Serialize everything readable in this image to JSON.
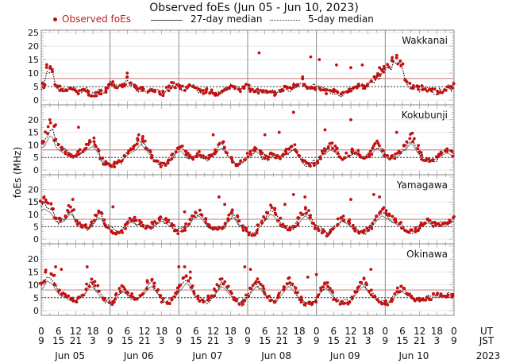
{
  "chart_data": {
    "type": "scatter",
    "title": "Observed foEs (Jun 05 - Jun 10, 2023)",
    "legend": [
      {
        "name": "Observed foEs",
        "marker": "dot",
        "color": "#b01010"
      },
      {
        "name": "27-day median",
        "style": "solid"
      },
      {
        "name": "5-day median",
        "style": "dotted"
      }
    ],
    "legend_placement": "top",
    "ylabel": "foEs (MHz)",
    "xlabel_rows": [
      "UT",
      "JST"
    ],
    "year_label": "2023",
    "x_ticks_ut": [
      "0",
      "6",
      "12",
      "18",
      "0",
      "6",
      "12",
      "18",
      "0",
      "6",
      "12",
      "18",
      "0",
      "6",
      "12",
      "18",
      "0",
      "6",
      "12",
      "18",
      "0",
      "6",
      "12",
      "18",
      "0"
    ],
    "x_ticks_jst": [
      "9",
      "15",
      "21",
      "3",
      "9",
      "15",
      "21",
      "3",
      "9",
      "15",
      "21",
      "3",
      "9",
      "15",
      "21",
      "3",
      "9",
      "15",
      "21",
      "3",
      "9",
      "15",
      "21",
      "3",
      "9"
    ],
    "day_labels": [
      "Jun 05",
      "Jun 06",
      "Jun 07",
      "Jun 08",
      "Jun 09",
      "Jun 10"
    ],
    "x_range_hours": [
      0,
      144
    ],
    "grid": true,
    "panels": [
      {
        "station": "Wakkanai",
        "ylim": [
          0,
          25
        ],
        "y_ticks": [
          "0",
          "5",
          "10",
          "15",
          "20",
          "25"
        ],
        "median27": 8,
        "median5_level": 5,
        "observed_profile": [
          5.5,
          5,
          12.5,
          12,
          11,
          5,
          4.5,
          3.5,
          3.5,
          3.5,
          4,
          4.5,
          3.5,
          3,
          3,
          3.5,
          4,
          2.5,
          2,
          2,
          2.5,
          3,
          3.5,
          5,
          6,
          6,
          5.5,
          5,
          5,
          5.5,
          8.5,
          6,
          5,
          4.5,
          4,
          4,
          3.5,
          3,
          3,
          3.5,
          3,
          2.5,
          2.5,
          3,
          4,
          5,
          6,
          5,
          5,
          5,
          4,
          4.5,
          5,
          4.5,
          4,
          3.5,
          3,
          3,
          3.5,
          3,
          3,
          2.5,
          2.5,
          3,
          3.5,
          4,
          5,
          5,
          5,
          4.5,
          4,
          4.5,
          5,
          4,
          3.5,
          3.5,
          3,
          3,
          3,
          2.5,
          2.5,
          2.5,
          3,
          3,
          4,
          5,
          4.5,
          4.5,
          5,
          5.5,
          6,
          8,
          6,
          5,
          5,
          5,
          4,
          4,
          3.5,
          3,
          3,
          3,
          3.5,
          3,
          2.5,
          2.5,
          2.5,
          3,
          3.5,
          4,
          5,
          6,
          5,
          5,
          6,
          7,
          8,
          9,
          10,
          11,
          12,
          13,
          14,
          15,
          16,
          14,
          13,
          7,
          6,
          5,
          5,
          5,
          4.5,
          4.5,
          4,
          4,
          3.5,
          3.5,
          3,
          3,
          3.5,
          4,
          4.5,
          5,
          6
        ],
        "outliers": [
          [
            30,
            10
          ],
          [
            76,
            17.5
          ],
          [
            94,
            16
          ],
          [
            97,
            15
          ],
          [
            103,
            13
          ],
          [
            108,
            12
          ],
          [
            112,
            13
          ],
          [
            118,
            12
          ]
        ]
      },
      {
        "station": "Kokubunji",
        "ylim": [
          0,
          25
        ],
        "y_ticks": [
          "0",
          "5",
          "10",
          "15",
          "20"
        ],
        "median27": 8,
        "median5_level": 5,
        "observed_profile": [
          11,
          12,
          15,
          18,
          17,
          12,
          10,
          9,
          8,
          7,
          6,
          5,
          6,
          7,
          8,
          9,
          10,
          11,
          12,
          10,
          8,
          5,
          3,
          2,
          2,
          2,
          2.5,
          3,
          4,
          5,
          7,
          8,
          9,
          10,
          12,
          13,
          11,
          9,
          7,
          5,
          4,
          3,
          2,
          2,
          3,
          4,
          6,
          8,
          9,
          9,
          7,
          6,
          5,
          5,
          6,
          7,
          6,
          5,
          5,
          6,
          7,
          8,
          10,
          11,
          9,
          7,
          5,
          3,
          2,
          2,
          3,
          4,
          6,
          7,
          8,
          9,
          8,
          6,
          5,
          5,
          6,
          6,
          5,
          5,
          6,
          7,
          8,
          9,
          10,
          8,
          6,
          4,
          3,
          2,
          2,
          2.5,
          3,
          5,
          7,
          8,
          9,
          10,
          9,
          8,
          6,
          5,
          5,
          6,
          7,
          8,
          7,
          6,
          5,
          5,
          6,
          7,
          9,
          11,
          10,
          8,
          6,
          5,
          5,
          5,
          6,
          7,
          9,
          10,
          12,
          14,
          12,
          9,
          7,
          5,
          4,
          4,
          4,
          4.5,
          5,
          6,
          7,
          8,
          8,
          7,
          6
        ],
        "outliers": [
          [
            3,
            20
          ],
          [
            5,
            18
          ],
          [
            13,
            17
          ],
          [
            34,
            14
          ],
          [
            60,
            14
          ],
          [
            78,
            14
          ],
          [
            83,
            15
          ],
          [
            88,
            23
          ],
          [
            99,
            16
          ],
          [
            108,
            20
          ],
          [
            124,
            15
          ]
        ]
      },
      {
        "station": "Yamagawa",
        "ylim": [
          0,
          25
        ],
        "y_ticks": [
          "0",
          "5",
          "10",
          "15",
          "20"
        ],
        "median27": 8,
        "median5_level": 5,
        "observed_profile": [
          15,
          16,
          15,
          14,
          12,
          9,
          8,
          8,
          9,
          11,
          13,
          12,
          8,
          6,
          5,
          5,
          5,
          6,
          7,
          9,
          11,
          10,
          7,
          5,
          4,
          3,
          2,
          2,
          3,
          5,
          7,
          8,
          8,
          7,
          7,
          6,
          5,
          5,
          5,
          6,
          7,
          8,
          9,
          8,
          7,
          6,
          5,
          4,
          3,
          3,
          4,
          6,
          8,
          10,
          11,
          12,
          10,
          8,
          6,
          5,
          4,
          4,
          4,
          5,
          6,
          8,
          10,
          11,
          9,
          7,
          5,
          4,
          3,
          2,
          2,
          3,
          5,
          7,
          9,
          11,
          13,
          12,
          10,
          8,
          6,
          5,
          4,
          4,
          5,
          6,
          8,
          10,
          12,
          11,
          9,
          7,
          5,
          4,
          3,
          3,
          2,
          3,
          4,
          6,
          8,
          9,
          8,
          7,
          6,
          5,
          4,
          3,
          3,
          3,
          4,
          5,
          7,
          9,
          11,
          12,
          11,
          10,
          9,
          8,
          7,
          6,
          5,
          4,
          3,
          3,
          3,
          4,
          5,
          6,
          7,
          8,
          7,
          6,
          6,
          6,
          6,
          6,
          7,
          8,
          9
        ],
        "outliers": [
          [
            1,
            17
          ],
          [
            11,
            16
          ],
          [
            25,
            13
          ],
          [
            50,
            11
          ],
          [
            62,
            17
          ],
          [
            64,
            14
          ],
          [
            85,
            14
          ],
          [
            88,
            18
          ],
          [
            92,
            17
          ],
          [
            108,
            16
          ],
          [
            116,
            18
          ],
          [
            118,
            17
          ]
        ]
      },
      {
        "station": "Okinawa",
        "ylim": [
          0,
          25
        ],
        "y_ticks": [
          "0",
          "5",
          "10",
          "15",
          "20"
        ],
        "median27": 8,
        "median5_level": 5,
        "observed_profile": [
          10,
          12,
          15,
          14,
          13,
          10,
          8,
          7,
          6,
          5,
          4,
          4,
          4,
          5,
          6,
          8,
          10,
          12,
          11,
          9,
          7,
          5,
          4,
          3,
          3,
          4,
          6,
          8,
          9,
          8,
          7,
          6,
          5,
          5,
          6,
          7,
          9,
          11,
          12,
          10,
          8,
          6,
          4,
          3,
          3,
          4,
          6,
          8,
          10,
          12,
          14,
          12,
          9,
          7,
          5,
          4,
          4,
          4,
          5,
          6,
          8,
          10,
          12,
          11,
          9,
          7,
          5,
          4,
          3,
          3,
          4,
          6,
          8,
          10,
          12,
          11,
          9,
          7,
          5,
          4,
          4,
          5,
          6,
          8,
          10,
          12,
          11,
          9,
          7,
          5,
          4,
          3,
          3,
          3,
          4,
          6,
          8,
          10,
          11,
          9,
          7,
          5,
          4,
          3,
          3,
          3,
          4,
          5,
          7,
          9,
          11,
          12,
          10,
          8,
          6,
          5,
          4,
          3,
          3,
          3,
          4,
          5,
          7,
          8,
          9,
          8,
          7,
          6,
          5,
          4,
          4,
          4,
          4,
          5,
          5,
          6,
          6,
          6,
          6,
          6,
          6,
          6,
          6
        ],
        "outliers": [
          [
            5,
            17
          ],
          [
            7,
            16
          ],
          [
            16,
            17
          ],
          [
            48,
            17
          ],
          [
            50,
            17
          ],
          [
            52,
            15
          ],
          [
            71,
            17
          ],
          [
            73,
            16
          ],
          [
            93,
            13
          ],
          [
            96,
            14
          ],
          [
            115,
            16
          ]
        ]
      }
    ]
  }
}
